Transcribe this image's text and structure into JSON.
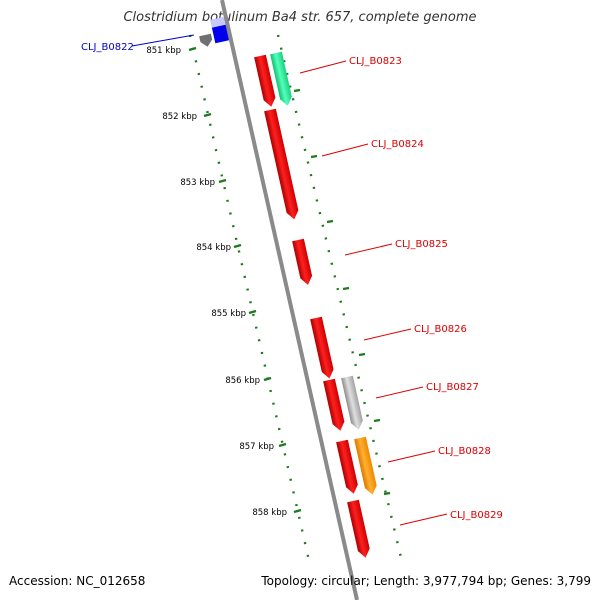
{
  "title": "Clostridium botulinum Ba4 str. 657, complete genome",
  "footer": {
    "accession": "Accession: NC_012658",
    "summary": "Topology: circular; Length: 3,977,794 bp; Genes: 3,799"
  },
  "scale_labels": [
    "851 kbp",
    "852 kbp",
    "853 kbp",
    "854 kbp",
    "855 kbp",
    "856 kbp",
    "857 kbp",
    "858 kbp"
  ],
  "genes": [
    {
      "label": "CLJ_B0822",
      "color": "#0000cc"
    },
    {
      "label": "CLJ_B0823",
      "color": "#dd0000"
    },
    {
      "label": "CLJ_B0824",
      "color": "#dd0000"
    },
    {
      "label": "CLJ_B0825",
      "color": "#dd0000"
    },
    {
      "label": "CLJ_B0826",
      "color": "#dd0000"
    },
    {
      "label": "CLJ_B0827",
      "color": "#dd0000"
    },
    {
      "label": "CLJ_B0828",
      "color": "#dd0000"
    },
    {
      "label": "CLJ_B0829",
      "color": "#dd0000"
    }
  ],
  "colors": {
    "backbone": "#8a8a8a",
    "ticks": "#1e7a1e",
    "forward": "#ff0000",
    "green": "#22ee99",
    "gray_feature": "#b8b8b8",
    "orange": "#ff9900",
    "blue": "#0000ee",
    "dark_gray": "#707070",
    "light_blue": "#c8c8ff"
  }
}
